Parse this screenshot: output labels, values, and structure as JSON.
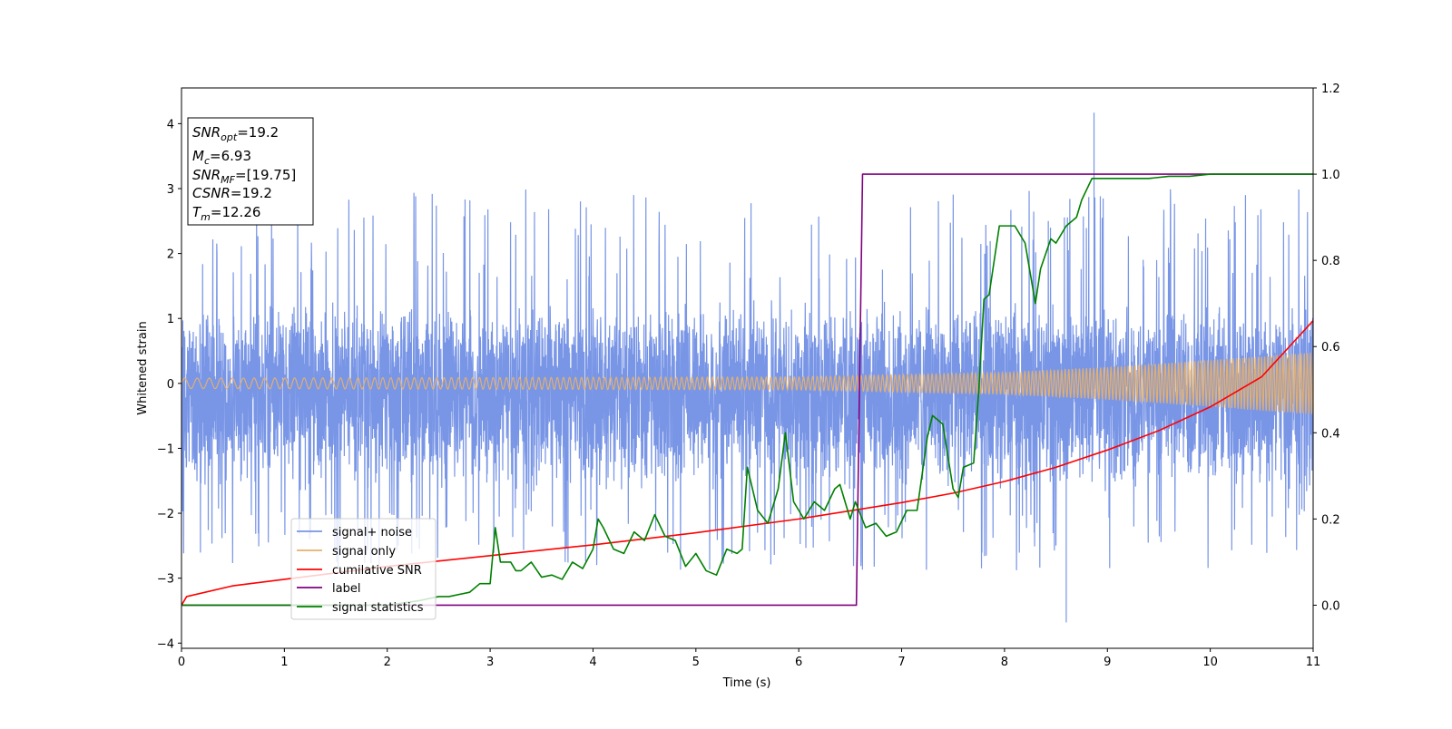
{
  "chart_data": {
    "type": "line",
    "title": "",
    "xlabel": "Time (s)",
    "ylabel": "Whitened strain",
    "y2label": "",
    "xlim": [
      0,
      11
    ],
    "ylim": [
      -4.08,
      4.55
    ],
    "y2lim": [
      -0.1,
      1.2
    ],
    "x_ticks": [
      0,
      1,
      2,
      3,
      4,
      5,
      6,
      7,
      8,
      9,
      10,
      11
    ],
    "y_ticks": [
      -4,
      -3,
      -2,
      -1,
      0,
      1,
      2,
      3,
      4
    ],
    "y2_ticks": [
      0.0,
      0.2,
      0.4,
      0.6,
      0.8,
      1.0,
      1.2
    ],
    "y2_tick_labels": [
      "0.0",
      "0.2",
      "0.4",
      "0.6",
      "0.8",
      "1.0",
      "1.2"
    ],
    "legend_position": "lower-left",
    "info_box": {
      "lines": [
        {
          "main": "SNR",
          "sub": "opt",
          "value": "=19.2"
        },
        {
          "main": "M",
          "sub": "c",
          "value": "=6.93"
        },
        {
          "main": "SNR",
          "sub": "MF",
          "value": "=[19.75]"
        },
        {
          "main": "CSNR",
          "sub": "",
          "value": "=19.2"
        },
        {
          "main": "T",
          "sub": "m",
          "value": "=12.26"
        }
      ]
    },
    "series": [
      {
        "name": "signal+ noise",
        "axis": "left",
        "color": "#7895e6",
        "style": "noise",
        "description_values": {
          "typical_upper": 1.3,
          "typical_lower": -1.7,
          "max_spike": 4.17,
          "max_spike_x": 8.87,
          "min_spike": -3.68,
          "min_spike_x": 8.6
        }
      },
      {
        "name": "signal only",
        "axis": "left",
        "color": "#e5b06e",
        "style": "chirp",
        "amplitude_points": [
          [
            0,
            0.08
          ],
          [
            6,
            0.1
          ],
          [
            8,
            0.17
          ],
          [
            9,
            0.25
          ],
          [
            10,
            0.36
          ],
          [
            11,
            0.48
          ]
        ]
      },
      {
        "name": "cumilative SNR",
        "axis": "right",
        "color": "#ff0000",
        "x": [
          0,
          0.05,
          0.5,
          1,
          2,
          3,
          4,
          5,
          6,
          7,
          7.5,
          8,
          8.5,
          9,
          9.5,
          10,
          10.5,
          11
        ],
        "y": [
          0,
          0.02,
          0.045,
          0.06,
          0.09,
          0.115,
          0.14,
          0.168,
          0.2,
          0.238,
          0.26,
          0.287,
          0.32,
          0.36,
          0.405,
          0.46,
          0.53,
          0.66
        ]
      },
      {
        "name": "label",
        "axis": "right",
        "color": "#800080",
        "x": [
          0,
          6.56,
          6.62,
          11
        ],
        "y": [
          0,
          0,
          1,
          1
        ]
      },
      {
        "name": "signal statistics",
        "axis": "right",
        "color": "#008000",
        "x": [
          0,
          2.0,
          2.3,
          2.5,
          2.6,
          2.8,
          2.9,
          3.0,
          3.05,
          3.1,
          3.2,
          3.25,
          3.3,
          3.4,
          3.5,
          3.6,
          3.7,
          3.8,
          3.9,
          4.0,
          4.05,
          4.1,
          4.2,
          4.3,
          4.4,
          4.5,
          4.6,
          4.7,
          4.8,
          4.9,
          5.0,
          5.1,
          5.2,
          5.3,
          5.4,
          5.45,
          5.5,
          5.6,
          5.7,
          5.8,
          5.87,
          5.95,
          6.05,
          6.15,
          6.25,
          6.35,
          6.4,
          6.5,
          6.55,
          6.65,
          6.75,
          6.85,
          6.95,
          7.05,
          7.15,
          7.25,
          7.3,
          7.4,
          7.5,
          7.55,
          7.6,
          7.7,
          7.75,
          7.8,
          7.85,
          7.9,
          7.95,
          8.0,
          8.1,
          8.2,
          8.3,
          8.35,
          8.45,
          8.5,
          8.6,
          8.7,
          8.75,
          8.85,
          9.0,
          9.2,
          9.4,
          9.6,
          9.8,
          10.0,
          10.2,
          10.5,
          11.0
        ],
        "y": [
          0,
          0.0,
          0.01,
          0.02,
          0.02,
          0.03,
          0.05,
          0.05,
          0.18,
          0.1,
          0.1,
          0.08,
          0.08,
          0.1,
          0.065,
          0.07,
          0.06,
          0.1,
          0.085,
          0.13,
          0.2,
          0.18,
          0.13,
          0.12,
          0.17,
          0.15,
          0.21,
          0.16,
          0.15,
          0.09,
          0.12,
          0.08,
          0.07,
          0.13,
          0.12,
          0.13,
          0.32,
          0.22,
          0.19,
          0.27,
          0.4,
          0.24,
          0.2,
          0.24,
          0.22,
          0.27,
          0.28,
          0.2,
          0.24,
          0.18,
          0.19,
          0.16,
          0.17,
          0.22,
          0.22,
          0.39,
          0.44,
          0.42,
          0.27,
          0.25,
          0.32,
          0.33,
          0.5,
          0.71,
          0.72,
          0.8,
          0.88,
          0.88,
          0.88,
          0.84,
          0.7,
          0.78,
          0.85,
          0.84,
          0.88,
          0.9,
          0.94,
          0.99,
          0.99,
          0.99,
          0.99,
          0.995,
          0.995,
          1.0,
          1.0,
          1.0,
          1.0
        ]
      }
    ]
  }
}
